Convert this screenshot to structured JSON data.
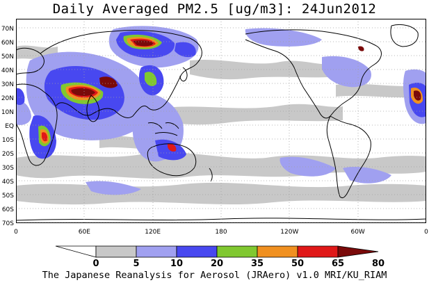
{
  "title": "Daily Averaged PM2.5 [ug/m3]: 24Jun2012",
  "footer": "The Japanese Reanalysis for Aerosol (JRAero) v1.0 MRI/KU_RIAM",
  "lat_labels": [
    "70N",
    "60N",
    "50N",
    "40N",
    "30N",
    "20N",
    "10N",
    "EQ",
    "10S",
    "20S",
    "30S",
    "40S",
    "50S",
    "60S",
    "70S"
  ],
  "lon_labels": [
    "0",
    "60E",
    "120E",
    "180",
    "120W",
    "60W",
    "0"
  ],
  "colorbar": {
    "ticks": [
      "0",
      "5",
      "10",
      "20",
      "35",
      "50",
      "65",
      "80"
    ],
    "colors": [
      "#ffffff",
      "#c8c8c8",
      "#a0a0f0",
      "#4848f0",
      "#80c830",
      "#f09020",
      "#e01818",
      "#7a0a0a"
    ]
  },
  "colors": {
    "ocean": "#ffffff",
    "land_outline": "#000000",
    "grid": "#a0a0a0"
  }
}
